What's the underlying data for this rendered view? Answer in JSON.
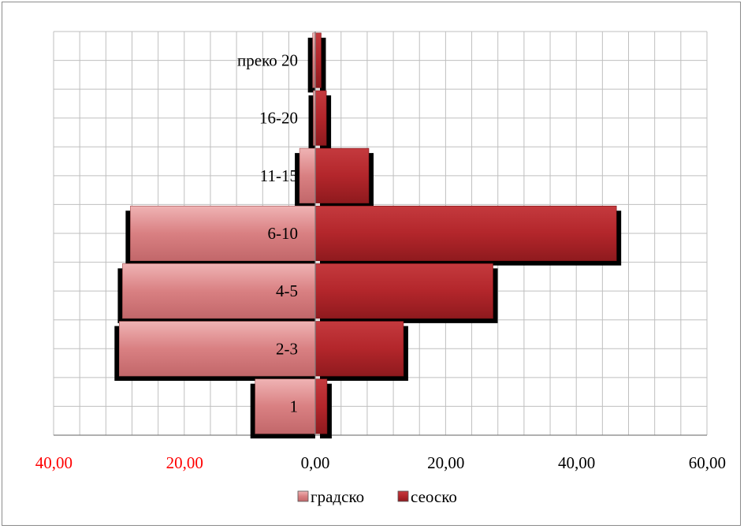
{
  "chart_data": {
    "type": "bar",
    "orientation": "horizontal-diverging",
    "categories": [
      "1",
      "2-3",
      "4-5",
      "6-10",
      "11-15",
      "16-20",
      "преко 20"
    ],
    "series": [
      {
        "name": "градско",
        "values": [
          9.2,
          30.0,
          29.5,
          28.3,
          2.4,
          0.3,
          0.4
        ],
        "color": "#d98082"
      },
      {
        "name": "сеоско",
        "values": [
          1.8,
          13.5,
          27.2,
          46.1,
          8.2,
          1.7,
          0.9
        ],
        "color": "#b3262b"
      }
    ],
    "x_ticks": [
      {
        "label": "40,00",
        "value": -40,
        "color": "#ff0000"
      },
      {
        "label": "20,00",
        "value": -20,
        "color": "#ff0000"
      },
      {
        "label": "0,00",
        "value": 0,
        "color": "#000000"
      },
      {
        "label": "20,00",
        "value": 20,
        "color": "#000000"
      },
      {
        "label": "40,00",
        "value": 40,
        "color": "#000000"
      },
      {
        "label": "60,00",
        "value": 60,
        "color": "#000000"
      }
    ],
    "xlim": [
      -40,
      60
    ],
    "grid": true,
    "legend_position": "bottom",
    "shadow_color": "#000000"
  }
}
